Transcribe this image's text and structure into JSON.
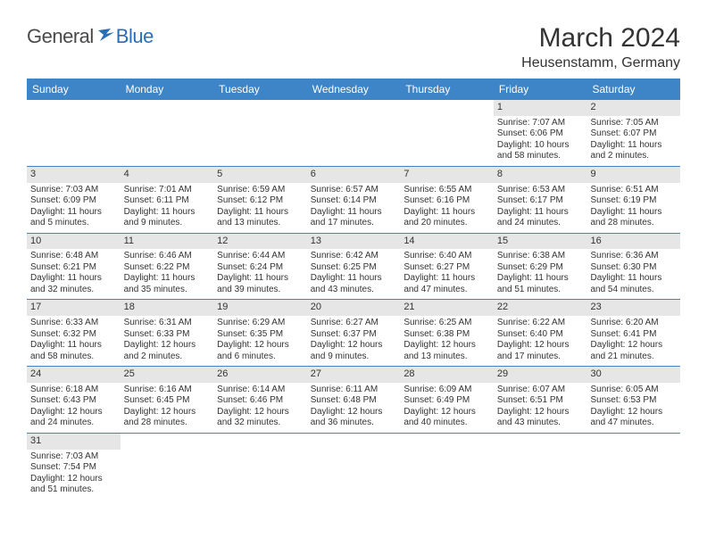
{
  "logo": {
    "part1": "General",
    "part2": "Blue"
  },
  "title": "March 2024",
  "location": "Heusenstamm, Germany",
  "colors": {
    "headerBlue": "#3d85c6",
    "dayStripGray": "#e6e6e6",
    "borderBlue": "#3d85c6",
    "textDark": "#333333",
    "logoBlue": "#2a6fb5",
    "logoGray": "#4a4a4a"
  },
  "dayNames": [
    "Sunday",
    "Monday",
    "Tuesday",
    "Wednesday",
    "Thursday",
    "Friday",
    "Saturday"
  ],
  "weeks": [
    [
      {
        "n": "",
        "sr": "",
        "ss": "",
        "dl1": "",
        "dl2": ""
      },
      {
        "n": "",
        "sr": "",
        "ss": "",
        "dl1": "",
        "dl2": ""
      },
      {
        "n": "",
        "sr": "",
        "ss": "",
        "dl1": "",
        "dl2": ""
      },
      {
        "n": "",
        "sr": "",
        "ss": "",
        "dl1": "",
        "dl2": ""
      },
      {
        "n": "",
        "sr": "",
        "ss": "",
        "dl1": "",
        "dl2": ""
      },
      {
        "n": "1",
        "sr": "Sunrise: 7:07 AM",
        "ss": "Sunset: 6:06 PM",
        "dl1": "Daylight: 10 hours",
        "dl2": "and 58 minutes."
      },
      {
        "n": "2",
        "sr": "Sunrise: 7:05 AM",
        "ss": "Sunset: 6:07 PM",
        "dl1": "Daylight: 11 hours",
        "dl2": "and 2 minutes."
      }
    ],
    [
      {
        "n": "3",
        "sr": "Sunrise: 7:03 AM",
        "ss": "Sunset: 6:09 PM",
        "dl1": "Daylight: 11 hours",
        "dl2": "and 5 minutes."
      },
      {
        "n": "4",
        "sr": "Sunrise: 7:01 AM",
        "ss": "Sunset: 6:11 PM",
        "dl1": "Daylight: 11 hours",
        "dl2": "and 9 minutes."
      },
      {
        "n": "5",
        "sr": "Sunrise: 6:59 AM",
        "ss": "Sunset: 6:12 PM",
        "dl1": "Daylight: 11 hours",
        "dl2": "and 13 minutes."
      },
      {
        "n": "6",
        "sr": "Sunrise: 6:57 AM",
        "ss": "Sunset: 6:14 PM",
        "dl1": "Daylight: 11 hours",
        "dl2": "and 17 minutes."
      },
      {
        "n": "7",
        "sr": "Sunrise: 6:55 AM",
        "ss": "Sunset: 6:16 PM",
        "dl1": "Daylight: 11 hours",
        "dl2": "and 20 minutes."
      },
      {
        "n": "8",
        "sr": "Sunrise: 6:53 AM",
        "ss": "Sunset: 6:17 PM",
        "dl1": "Daylight: 11 hours",
        "dl2": "and 24 minutes."
      },
      {
        "n": "9",
        "sr": "Sunrise: 6:51 AM",
        "ss": "Sunset: 6:19 PM",
        "dl1": "Daylight: 11 hours",
        "dl2": "and 28 minutes."
      }
    ],
    [
      {
        "n": "10",
        "sr": "Sunrise: 6:48 AM",
        "ss": "Sunset: 6:21 PM",
        "dl1": "Daylight: 11 hours",
        "dl2": "and 32 minutes."
      },
      {
        "n": "11",
        "sr": "Sunrise: 6:46 AM",
        "ss": "Sunset: 6:22 PM",
        "dl1": "Daylight: 11 hours",
        "dl2": "and 35 minutes."
      },
      {
        "n": "12",
        "sr": "Sunrise: 6:44 AM",
        "ss": "Sunset: 6:24 PM",
        "dl1": "Daylight: 11 hours",
        "dl2": "and 39 minutes."
      },
      {
        "n": "13",
        "sr": "Sunrise: 6:42 AM",
        "ss": "Sunset: 6:25 PM",
        "dl1": "Daylight: 11 hours",
        "dl2": "and 43 minutes."
      },
      {
        "n": "14",
        "sr": "Sunrise: 6:40 AM",
        "ss": "Sunset: 6:27 PM",
        "dl1": "Daylight: 11 hours",
        "dl2": "and 47 minutes."
      },
      {
        "n": "15",
        "sr": "Sunrise: 6:38 AM",
        "ss": "Sunset: 6:29 PM",
        "dl1": "Daylight: 11 hours",
        "dl2": "and 51 minutes."
      },
      {
        "n": "16",
        "sr": "Sunrise: 6:36 AM",
        "ss": "Sunset: 6:30 PM",
        "dl1": "Daylight: 11 hours",
        "dl2": "and 54 minutes."
      }
    ],
    [
      {
        "n": "17",
        "sr": "Sunrise: 6:33 AM",
        "ss": "Sunset: 6:32 PM",
        "dl1": "Daylight: 11 hours",
        "dl2": "and 58 minutes."
      },
      {
        "n": "18",
        "sr": "Sunrise: 6:31 AM",
        "ss": "Sunset: 6:33 PM",
        "dl1": "Daylight: 12 hours",
        "dl2": "and 2 minutes."
      },
      {
        "n": "19",
        "sr": "Sunrise: 6:29 AM",
        "ss": "Sunset: 6:35 PM",
        "dl1": "Daylight: 12 hours",
        "dl2": "and 6 minutes."
      },
      {
        "n": "20",
        "sr": "Sunrise: 6:27 AM",
        "ss": "Sunset: 6:37 PM",
        "dl1": "Daylight: 12 hours",
        "dl2": "and 9 minutes."
      },
      {
        "n": "21",
        "sr": "Sunrise: 6:25 AM",
        "ss": "Sunset: 6:38 PM",
        "dl1": "Daylight: 12 hours",
        "dl2": "and 13 minutes."
      },
      {
        "n": "22",
        "sr": "Sunrise: 6:22 AM",
        "ss": "Sunset: 6:40 PM",
        "dl1": "Daylight: 12 hours",
        "dl2": "and 17 minutes."
      },
      {
        "n": "23",
        "sr": "Sunrise: 6:20 AM",
        "ss": "Sunset: 6:41 PM",
        "dl1": "Daylight: 12 hours",
        "dl2": "and 21 minutes."
      }
    ],
    [
      {
        "n": "24",
        "sr": "Sunrise: 6:18 AM",
        "ss": "Sunset: 6:43 PM",
        "dl1": "Daylight: 12 hours",
        "dl2": "and 24 minutes."
      },
      {
        "n": "25",
        "sr": "Sunrise: 6:16 AM",
        "ss": "Sunset: 6:45 PM",
        "dl1": "Daylight: 12 hours",
        "dl2": "and 28 minutes."
      },
      {
        "n": "26",
        "sr": "Sunrise: 6:14 AM",
        "ss": "Sunset: 6:46 PM",
        "dl1": "Daylight: 12 hours",
        "dl2": "and 32 minutes."
      },
      {
        "n": "27",
        "sr": "Sunrise: 6:11 AM",
        "ss": "Sunset: 6:48 PM",
        "dl1": "Daylight: 12 hours",
        "dl2": "and 36 minutes."
      },
      {
        "n": "28",
        "sr": "Sunrise: 6:09 AM",
        "ss": "Sunset: 6:49 PM",
        "dl1": "Daylight: 12 hours",
        "dl2": "and 40 minutes."
      },
      {
        "n": "29",
        "sr": "Sunrise: 6:07 AM",
        "ss": "Sunset: 6:51 PM",
        "dl1": "Daylight: 12 hours",
        "dl2": "and 43 minutes."
      },
      {
        "n": "30",
        "sr": "Sunrise: 6:05 AM",
        "ss": "Sunset: 6:53 PM",
        "dl1": "Daylight: 12 hours",
        "dl2": "and 47 minutes."
      }
    ],
    [
      {
        "n": "31",
        "sr": "Sunrise: 7:03 AM",
        "ss": "Sunset: 7:54 PM",
        "dl1": "Daylight: 12 hours",
        "dl2": "and 51 minutes."
      },
      {
        "n": "",
        "sr": "",
        "ss": "",
        "dl1": "",
        "dl2": ""
      },
      {
        "n": "",
        "sr": "",
        "ss": "",
        "dl1": "",
        "dl2": ""
      },
      {
        "n": "",
        "sr": "",
        "ss": "",
        "dl1": "",
        "dl2": ""
      },
      {
        "n": "",
        "sr": "",
        "ss": "",
        "dl1": "",
        "dl2": ""
      },
      {
        "n": "",
        "sr": "",
        "ss": "",
        "dl1": "",
        "dl2": ""
      },
      {
        "n": "",
        "sr": "",
        "ss": "",
        "dl1": "",
        "dl2": ""
      }
    ]
  ]
}
